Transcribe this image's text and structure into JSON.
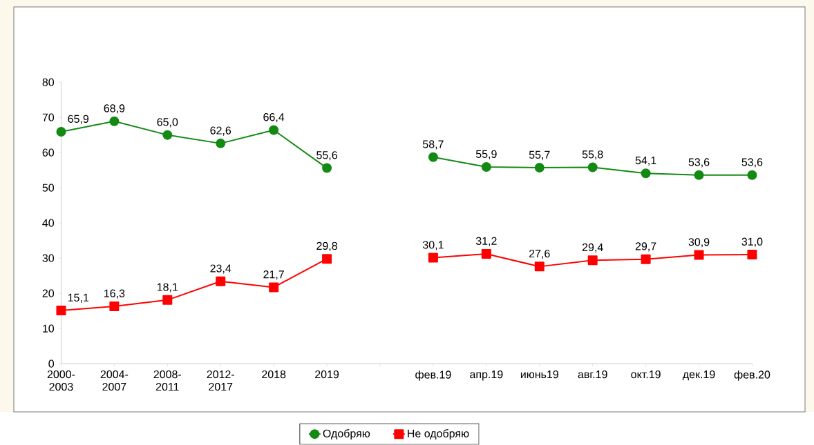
{
  "chart_data": {
    "type": "line",
    "categories": [
      "2000-2003",
      "2004-2007",
      "2008-2011",
      "2012-2017",
      "2018",
      "2019",
      null,
      "фев.19",
      "апр.19",
      "июнь19",
      "авг.19",
      "окт.19",
      "дек.19",
      "фев.20"
    ],
    "series": [
      {
        "name": "Одобряю",
        "color": "#138a13",
        "marker": "circle",
        "values": [
          65.9,
          68.9,
          65.0,
          62.6,
          66.4,
          55.6,
          null,
          58.7,
          55.9,
          55.7,
          55.8,
          54.1,
          53.6,
          53.6
        ],
        "value_labels": [
          "65,9",
          "68,9",
          "65,0",
          "62,6",
          "66,4",
          "55,6",
          null,
          "58,7",
          "55,9",
          "55,7",
          "55,8",
          "54,1",
          "53,6",
          "53,6"
        ]
      },
      {
        "name": "Не одобряю",
        "color": "#ff0000",
        "marker": "square",
        "values": [
          15.1,
          16.3,
          18.1,
          23.4,
          21.7,
          29.8,
          null,
          30.1,
          31.2,
          27.6,
          29.4,
          29.7,
          30.9,
          31.0
        ],
        "value_labels": [
          "15,1",
          "16,3",
          "18,1",
          "23,4",
          "21,7",
          "29,8",
          null,
          "30,1",
          "31,2",
          "27,6",
          "29,4",
          "29,7",
          "30,9",
          "31,0"
        ]
      }
    ],
    "ylim": [
      0,
      80
    ],
    "yticks": [
      0,
      10,
      20,
      30,
      40,
      50,
      60,
      70,
      80
    ],
    "grid": false,
    "legend": "bottom"
  }
}
